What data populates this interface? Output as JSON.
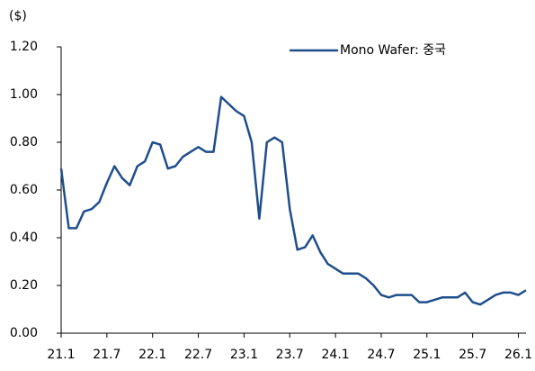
{
  "chart_data": {
    "type": "line",
    "y_unit": "($)",
    "x": [
      "21.1",
      "21.2",
      "21.3",
      "21.4",
      "21.5",
      "21.6",
      "21.7",
      "21.8",
      "21.9",
      "21.10",
      "21.11",
      "21.12",
      "22.1",
      "22.2",
      "22.3",
      "22.4",
      "22.5",
      "22.6",
      "22.7",
      "22.8",
      "22.9",
      "22.10",
      "22.11",
      "22.12",
      "23.1",
      "23.2",
      "23.3",
      "23.4",
      "23.5",
      "23.6",
      "23.7",
      "23.8",
      "23.9",
      "23.10",
      "23.11",
      "23.12",
      "24.1",
      "24.2",
      "24.3",
      "24.4",
      "24.5",
      "24.6",
      "24.7",
      "24.8",
      "24.9",
      "24.10",
      "24.11",
      "24.12",
      "25.1",
      "25.2",
      "25.3",
      "25.4",
      "25.5",
      "25.6",
      "25.7",
      "25.8",
      "25.9",
      "25.10",
      "25.11",
      "25.12",
      "26.1",
      "26.2"
    ],
    "series": [
      {
        "name": "Mono Wafer: 중국",
        "color": "#1f4e8c",
        "values": [
          0.69,
          0.44,
          0.44,
          0.51,
          0.52,
          0.55,
          0.63,
          0.7,
          0.65,
          0.62,
          0.7,
          0.72,
          0.8,
          0.79,
          0.69,
          0.7,
          0.74,
          0.76,
          0.78,
          0.76,
          0.76,
          0.99,
          0.96,
          0.93,
          0.91,
          0.8,
          0.48,
          0.8,
          0.82,
          0.8,
          0.52,
          0.35,
          0.36,
          0.41,
          0.34,
          0.29,
          0.27,
          0.25,
          0.25,
          0.25,
          0.23,
          0.2,
          0.16,
          0.15,
          0.16,
          0.16,
          0.16,
          0.13,
          0.13,
          0.14,
          0.15,
          0.15,
          0.15,
          0.17,
          0.13,
          0.12,
          0.14,
          0.16,
          0.17,
          0.17,
          0.16,
          0.18
        ]
      }
    ],
    "xlim": [
      "21.1",
      "26.2"
    ],
    "xticks": [
      "21.1",
      "21.7",
      "22.1",
      "22.7",
      "23.1",
      "23.7",
      "24.1",
      "24.7",
      "25.1",
      "25.7",
      "26.1"
    ],
    "ylim": [
      0,
      1.2
    ],
    "yticks": [
      {
        "value": 0,
        "label": "0.00"
      },
      {
        "value": 0.2,
        "label": "0.20"
      },
      {
        "value": 0.4,
        "label": "0.40"
      },
      {
        "value": 0.6,
        "label": "0.60"
      },
      {
        "value": 0.8,
        "label": "0.80"
      },
      {
        "value": 1,
        "label": "1.00"
      },
      {
        "value": 1.2,
        "label": "1.20"
      }
    ],
    "grid": false,
    "legend": "upper right"
  }
}
